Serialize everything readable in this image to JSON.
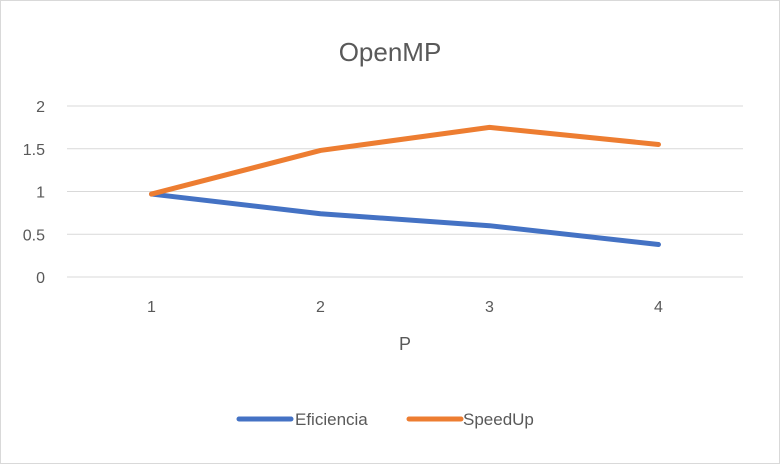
{
  "chart_data": {
    "type": "line",
    "title": "OpenMP",
    "xlabel": "P",
    "ylabel": "",
    "categories": [
      "1",
      "2",
      "3",
      "4"
    ],
    "ylim": [
      0,
      2
    ],
    "yticks": [
      "0",
      "0.5",
      "1",
      "1.5",
      "2"
    ],
    "grid": true,
    "legend_position": "bottom",
    "series": [
      {
        "name": "Eficiencia",
        "values": [
          0.97,
          0.74,
          0.6,
          0.38
        ],
        "color": "#4472C4"
      },
      {
        "name": "SpeedUp",
        "values": [
          0.97,
          1.48,
          1.75,
          1.55
        ],
        "color": "#ED7D31"
      }
    ]
  }
}
